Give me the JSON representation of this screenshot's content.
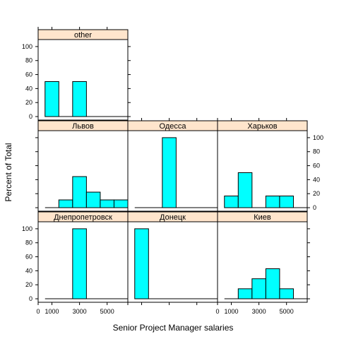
{
  "chart_data": {
    "type": "bar",
    "xlabel": "Senior Project Manager salaries",
    "ylabel": "Percent of Total",
    "xlim": [
      0,
      6500
    ],
    "ylim": [
      -5,
      110
    ],
    "x_ticks": [
      1000,
      3000,
      5000
    ],
    "x_ticks_minor": [
      0
    ],
    "y_ticks": [
      0,
      20,
      40,
      60,
      80,
      100
    ],
    "bin_edges": [
      500,
      1500,
      2500,
      3500,
      4500,
      5500,
      6500
    ],
    "colors": {
      "bar_fill": "#00ffff",
      "strip_bg": "#ffe5cc",
      "frame": "#000000"
    },
    "panels": [
      {
        "label": "Днепропетровск",
        "row": 2,
        "col": 0,
        "bin_values": [
          0,
          0,
          100,
          0,
          0,
          0
        ]
      },
      {
        "label": "Донецк",
        "row": 2,
        "col": 1,
        "bin_values": [
          100,
          0,
          0,
          0,
          0,
          0
        ]
      },
      {
        "label": "Киев",
        "row": 2,
        "col": 2,
        "bin_values": [
          0,
          14.3,
          28.6,
          42.9,
          14.3,
          0
        ]
      },
      {
        "label": "Львов",
        "row": 1,
        "col": 0,
        "bin_values": [
          0,
          11.1,
          44.4,
          22.2,
          11.1,
          11.1
        ]
      },
      {
        "label": "Одесса",
        "row": 1,
        "col": 1,
        "bin_values": [
          0,
          0,
          100,
          0,
          0,
          0
        ]
      },
      {
        "label": "Харьков",
        "row": 1,
        "col": 2,
        "bin_values": [
          16.7,
          50,
          0,
          16.7,
          16.7,
          0
        ]
      },
      {
        "label": "other",
        "row": 0,
        "col": 0,
        "bin_values": [
          50,
          0,
          50,
          0,
          0,
          0
        ]
      }
    ]
  }
}
